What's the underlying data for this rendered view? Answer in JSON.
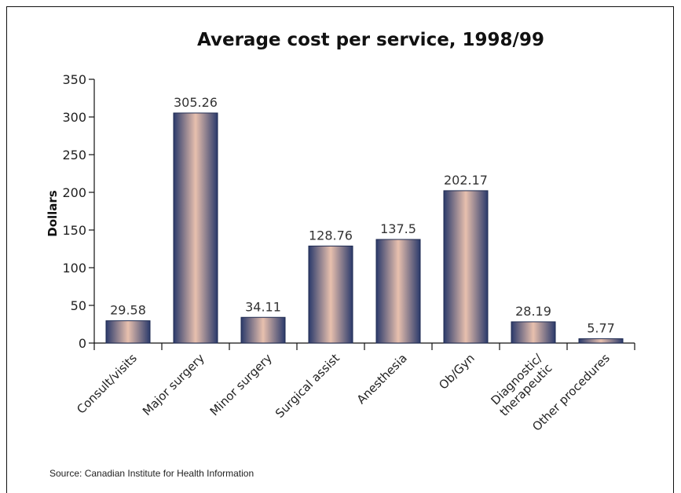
{
  "chart_data": {
    "type": "bar",
    "title": "Average cost per service, 1998/99",
    "xlabel": "",
    "ylabel": "Dollars",
    "ylim": [
      0,
      350
    ],
    "yticks": [
      0,
      50,
      100,
      150,
      200,
      250,
      300,
      350
    ],
    "grid": false,
    "categories": [
      "Consult/visits",
      "Major surgery",
      "Minor surgery",
      "Surgical assist",
      "Anesthesia",
      "Ob/Gyn",
      "Diagnostic/\ntherapeutic",
      "Other procedures"
    ],
    "values": [
      29.58,
      305.26,
      34.11,
      128.76,
      137.5,
      202.17,
      28.19,
      5.77
    ],
    "data_labels": [
      "29.58",
      "305.26",
      "34.11",
      "128.76",
      "137.5",
      "202.17",
      "28.19",
      "5.77"
    ],
    "bar_colors": {
      "edge": "#2b3a6b",
      "center": "#e8c0ae"
    }
  },
  "source": "Source: Canadian Institute for Health Information"
}
